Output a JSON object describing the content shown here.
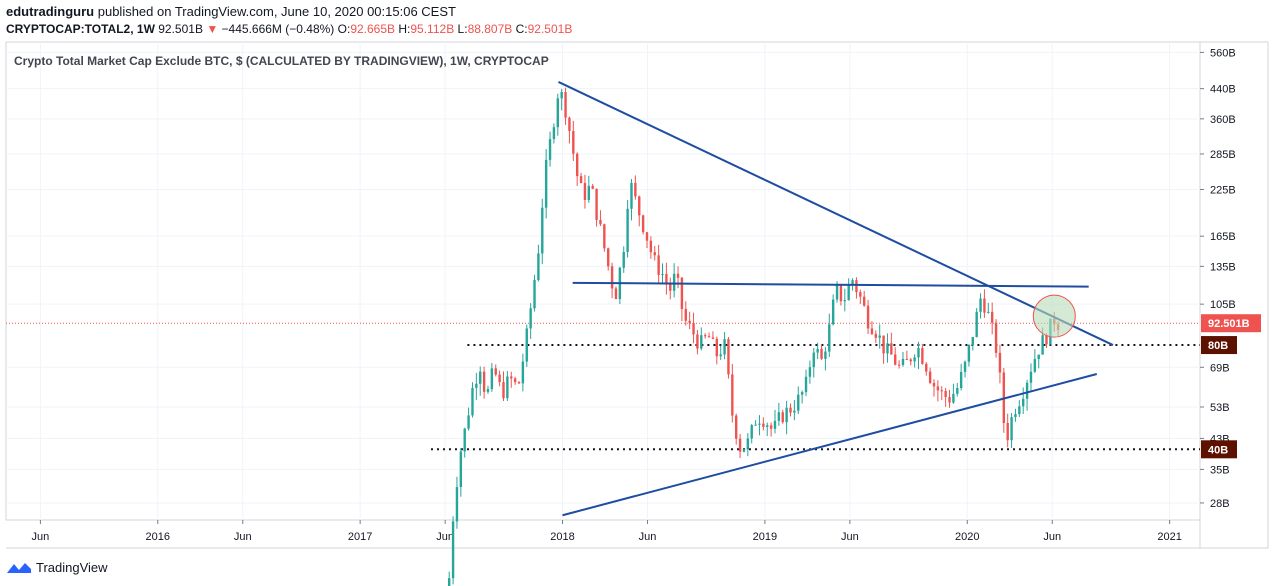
{
  "header": {
    "publisher": "edutradinguru",
    "published_text": "published on TradingView.com, June 10, 2020 00:15:06 CEST",
    "symbol": "CRYPTOCAP:TOTAL2, 1W",
    "last": "92.501B",
    "change_arrow": "▼",
    "change": "−445.666M (−0.48%)",
    "o_label": "O:",
    "o_value": "92.665B",
    "h_label": "H:",
    "h_value": "95.112B",
    "l_label": "L:",
    "l_value": "88.807B",
    "c_label": "C:",
    "c_value": "92.501B"
  },
  "footer": {
    "brand": "TradingView"
  },
  "colors": {
    "up": "#26a69a",
    "down": "#ef5350",
    "trend": "#1e4da1",
    "grid": "#f0f3fa",
    "axis": "#787b86",
    "price_tag": "#ef5350",
    "level_tag": "#5d1200",
    "circle_fill": "#b9dcb9",
    "circle_stroke": "#ef5350"
  },
  "chart_data": {
    "type": "candlestick",
    "title": "Crypto Total Market Cap Exclude BTC, $ (CALCULATED BY TRADINGVIEW), 1W, CRYPTOCAP",
    "y_scale": "log",
    "ylim": [
      25,
      600
    ],
    "y_ticks": [
      "560B",
      "440B",
      "360B",
      "285B",
      "225B",
      "165B",
      "135B",
      "105B",
      "69B",
      "53B",
      "43B",
      "35B",
      "28B"
    ],
    "y_tick_values": [
      560,
      440,
      360,
      285,
      225,
      165,
      135,
      105,
      69,
      53,
      43,
      35,
      28
    ],
    "x_range": [
      2015.25,
      2021.15
    ],
    "x_ticks": [
      {
        "label": "Jun",
        "t": 2015.42
      },
      {
        "label": "2016",
        "t": 2016.0
      },
      {
        "label": "Jun",
        "t": 2016.42
      },
      {
        "label": "2017",
        "t": 2017.0
      },
      {
        "label": "Jun",
        "t": 2017.42
      },
      {
        "label": "2018",
        "t": 2018.0
      },
      {
        "label": "Jun",
        "t": 2018.42
      },
      {
        "label": "2019",
        "t": 2019.0
      },
      {
        "label": "Jun",
        "t": 2019.42
      },
      {
        "label": "2020",
        "t": 2020.0
      },
      {
        "label": "Jun",
        "t": 2020.42
      },
      {
        "label": "2021",
        "t": 2021.0
      }
    ],
    "last_price": {
      "label": "92.501B",
      "value": 92.501
    },
    "levels": [
      {
        "label": "80B",
        "value": 80
      },
      {
        "label": "40B",
        "value": 40
      }
    ],
    "trendlines": [
      {
        "name": "descending-resistance",
        "from": [
          2017.98,
          460
        ],
        "to": [
          2020.72,
          80
        ]
      },
      {
        "name": "ascending-support",
        "from": [
          2018.0,
          25.8
        ],
        "to": [
          2020.64,
          66
        ]
      },
      {
        "name": "horizontal-resistance",
        "from": [
          2018.05,
          121
        ],
        "to": [
          2020.6,
          118
        ]
      }
    ],
    "highlight_circle": {
      "t": 2020.43,
      "value": 97
    },
    "series_anchors": [
      [
        2017.44,
        17
      ],
      [
        2017.46,
        26
      ],
      [
        2017.49,
        38
      ],
      [
        2017.52,
        46
      ],
      [
        2017.56,
        62
      ],
      [
        2017.6,
        72
      ],
      [
        2017.62,
        55
      ],
      [
        2017.66,
        68
      ],
      [
        2017.7,
        58
      ],
      [
        2017.74,
        64
      ],
      [
        2017.78,
        60
      ],
      [
        2017.82,
        82
      ],
      [
        2017.85,
        110
      ],
      [
        2017.88,
        150
      ],
      [
        2017.91,
        240
      ],
      [
        2017.94,
        310
      ],
      [
        2017.98,
        440
      ],
      [
        2018.01,
        400
      ],
      [
        2018.04,
        320
      ],
      [
        2018.07,
        250
      ],
      [
        2018.1,
        215
      ],
      [
        2018.14,
        230
      ],
      [
        2018.18,
        180
      ],
      [
        2018.22,
        140
      ],
      [
        2018.26,
        110
      ],
      [
        2018.3,
        150
      ],
      [
        2018.33,
        240
      ],
      [
        2018.37,
        200
      ],
      [
        2018.41,
        170
      ],
      [
        2018.45,
        140
      ],
      [
        2018.49,
        130
      ],
      [
        2018.53,
        115
      ],
      [
        2018.56,
        128
      ],
      [
        2018.6,
        95
      ],
      [
        2018.64,
        88
      ],
      [
        2018.68,
        80
      ],
      [
        2018.72,
        85
      ],
      [
        2018.76,
        75
      ],
      [
        2018.8,
        80
      ],
      [
        2018.84,
        50
      ],
      [
        2018.88,
        40
      ],
      [
        2018.92,
        42
      ],
      [
        2018.96,
        50
      ],
      [
        2019.0,
        49
      ],
      [
        2019.04,
        45
      ],
      [
        2019.08,
        50
      ],
      [
        2019.12,
        52
      ],
      [
        2019.16,
        55
      ],
      [
        2019.2,
        60
      ],
      [
        2019.24,
        80
      ],
      [
        2019.28,
        72
      ],
      [
        2019.32,
        90
      ],
      [
        2019.35,
        115
      ],
      [
        2019.39,
        108
      ],
      [
        2019.43,
        125
      ],
      [
        2019.47,
        110
      ],
      [
        2019.51,
        95
      ],
      [
        2019.55,
        88
      ],
      [
        2019.59,
        78
      ],
      [
        2019.63,
        74
      ],
      [
        2019.67,
        68
      ],
      [
        2019.71,
        72
      ],
      [
        2019.75,
        80
      ],
      [
        2019.79,
        72
      ],
      [
        2019.83,
        62
      ],
      [
        2019.87,
        58
      ],
      [
        2019.91,
        56
      ],
      [
        2019.95,
        60
      ],
      [
        2019.99,
        70
      ],
      [
        2020.03,
        88
      ],
      [
        2020.07,
        112
      ],
      [
        2020.11,
        95
      ],
      [
        2020.15,
        75
      ],
      [
        2020.19,
        42
      ],
      [
        2020.23,
        52
      ],
      [
        2020.27,
        58
      ],
      [
        2020.31,
        68
      ],
      [
        2020.35,
        78
      ],
      [
        2020.39,
        85
      ],
      [
        2020.43,
        95
      ],
      [
        2020.45,
        92.5
      ]
    ]
  }
}
